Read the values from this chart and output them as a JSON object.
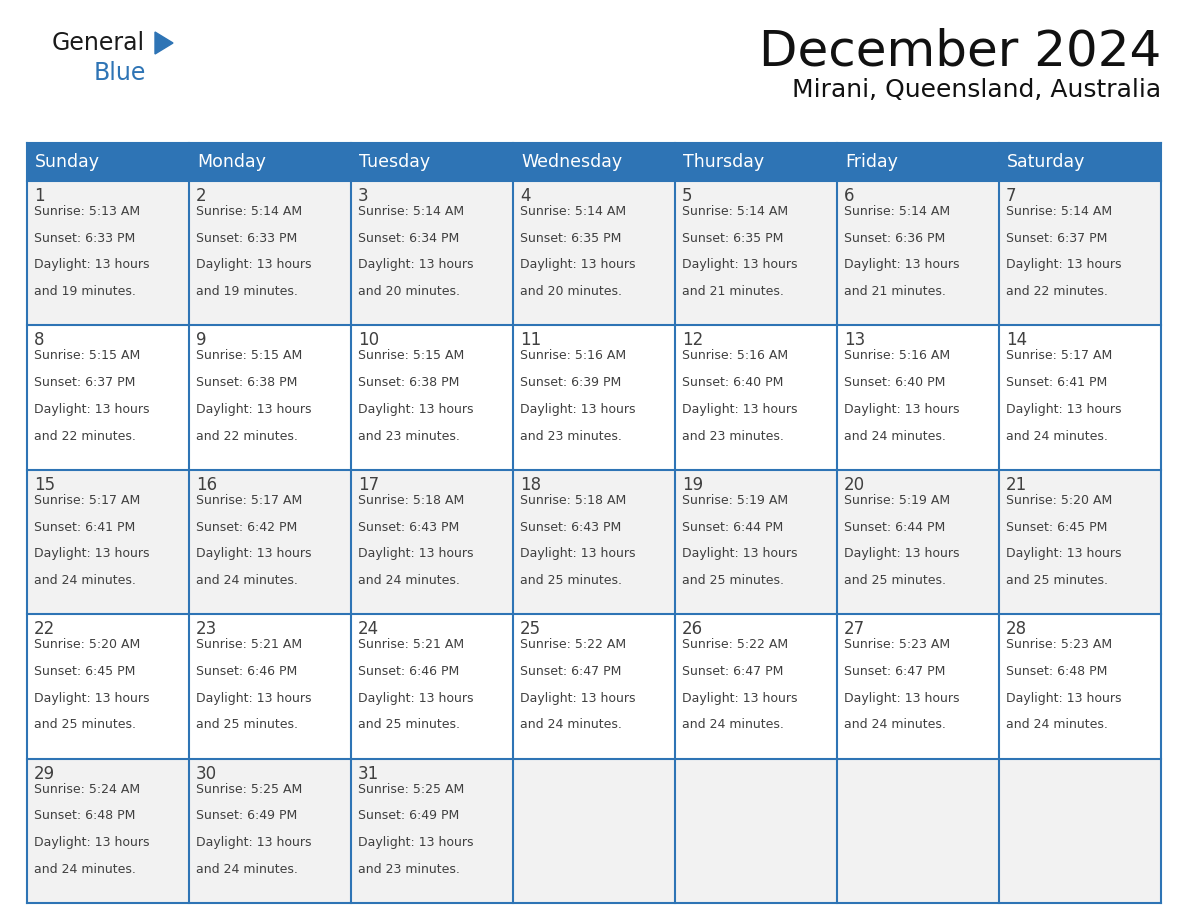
{
  "title": "December 2024",
  "subtitle": "Mirani, Queensland, Australia",
  "header_color": "#2E74B5",
  "header_text_color": "#FFFFFF",
  "cell_bg_even": "#F2F2F2",
  "cell_bg_odd": "#FFFFFF",
  "border_color": "#2E74B5",
  "text_color": "#404040",
  "days_of_week": [
    "Sunday",
    "Monday",
    "Tuesday",
    "Wednesday",
    "Thursday",
    "Friday",
    "Saturday"
  ],
  "calendar_data": [
    [
      {
        "day": 1,
        "sunrise": "5:13 AM",
        "sunset": "6:33 PM",
        "daylight_hours": 13,
        "daylight_minutes": 19
      },
      {
        "day": 2,
        "sunrise": "5:14 AM",
        "sunset": "6:33 PM",
        "daylight_hours": 13,
        "daylight_minutes": 19
      },
      {
        "day": 3,
        "sunrise": "5:14 AM",
        "sunset": "6:34 PM",
        "daylight_hours": 13,
        "daylight_minutes": 20
      },
      {
        "day": 4,
        "sunrise": "5:14 AM",
        "sunset": "6:35 PM",
        "daylight_hours": 13,
        "daylight_minutes": 20
      },
      {
        "day": 5,
        "sunrise": "5:14 AM",
        "sunset": "6:35 PM",
        "daylight_hours": 13,
        "daylight_minutes": 21
      },
      {
        "day": 6,
        "sunrise": "5:14 AM",
        "sunset": "6:36 PM",
        "daylight_hours": 13,
        "daylight_minutes": 21
      },
      {
        "day": 7,
        "sunrise": "5:14 AM",
        "sunset": "6:37 PM",
        "daylight_hours": 13,
        "daylight_minutes": 22
      }
    ],
    [
      {
        "day": 8,
        "sunrise": "5:15 AM",
        "sunset": "6:37 PM",
        "daylight_hours": 13,
        "daylight_minutes": 22
      },
      {
        "day": 9,
        "sunrise": "5:15 AM",
        "sunset": "6:38 PM",
        "daylight_hours": 13,
        "daylight_minutes": 22
      },
      {
        "day": 10,
        "sunrise": "5:15 AM",
        "sunset": "6:38 PM",
        "daylight_hours": 13,
        "daylight_minutes": 23
      },
      {
        "day": 11,
        "sunrise": "5:16 AM",
        "sunset": "6:39 PM",
        "daylight_hours": 13,
        "daylight_minutes": 23
      },
      {
        "day": 12,
        "sunrise": "5:16 AM",
        "sunset": "6:40 PM",
        "daylight_hours": 13,
        "daylight_minutes": 23
      },
      {
        "day": 13,
        "sunrise": "5:16 AM",
        "sunset": "6:40 PM",
        "daylight_hours": 13,
        "daylight_minutes": 24
      },
      {
        "day": 14,
        "sunrise": "5:17 AM",
        "sunset": "6:41 PM",
        "daylight_hours": 13,
        "daylight_minutes": 24
      }
    ],
    [
      {
        "day": 15,
        "sunrise": "5:17 AM",
        "sunset": "6:41 PM",
        "daylight_hours": 13,
        "daylight_minutes": 24
      },
      {
        "day": 16,
        "sunrise": "5:17 AM",
        "sunset": "6:42 PM",
        "daylight_hours": 13,
        "daylight_minutes": 24
      },
      {
        "day": 17,
        "sunrise": "5:18 AM",
        "sunset": "6:43 PM",
        "daylight_hours": 13,
        "daylight_minutes": 24
      },
      {
        "day": 18,
        "sunrise": "5:18 AM",
        "sunset": "6:43 PM",
        "daylight_hours": 13,
        "daylight_minutes": 25
      },
      {
        "day": 19,
        "sunrise": "5:19 AM",
        "sunset": "6:44 PM",
        "daylight_hours": 13,
        "daylight_minutes": 25
      },
      {
        "day": 20,
        "sunrise": "5:19 AM",
        "sunset": "6:44 PM",
        "daylight_hours": 13,
        "daylight_minutes": 25
      },
      {
        "day": 21,
        "sunrise": "5:20 AM",
        "sunset": "6:45 PM",
        "daylight_hours": 13,
        "daylight_minutes": 25
      }
    ],
    [
      {
        "day": 22,
        "sunrise": "5:20 AM",
        "sunset": "6:45 PM",
        "daylight_hours": 13,
        "daylight_minutes": 25
      },
      {
        "day": 23,
        "sunrise": "5:21 AM",
        "sunset": "6:46 PM",
        "daylight_hours": 13,
        "daylight_minutes": 25
      },
      {
        "day": 24,
        "sunrise": "5:21 AM",
        "sunset": "6:46 PM",
        "daylight_hours": 13,
        "daylight_minutes": 25
      },
      {
        "day": 25,
        "sunrise": "5:22 AM",
        "sunset": "6:47 PM",
        "daylight_hours": 13,
        "daylight_minutes": 24
      },
      {
        "day": 26,
        "sunrise": "5:22 AM",
        "sunset": "6:47 PM",
        "daylight_hours": 13,
        "daylight_minutes": 24
      },
      {
        "day": 27,
        "sunrise": "5:23 AM",
        "sunset": "6:47 PM",
        "daylight_hours": 13,
        "daylight_minutes": 24
      },
      {
        "day": 28,
        "sunrise": "5:23 AM",
        "sunset": "6:48 PM",
        "daylight_hours": 13,
        "daylight_minutes": 24
      }
    ],
    [
      {
        "day": 29,
        "sunrise": "5:24 AM",
        "sunset": "6:48 PM",
        "daylight_hours": 13,
        "daylight_minutes": 24
      },
      {
        "day": 30,
        "sunrise": "5:25 AM",
        "sunset": "6:49 PM",
        "daylight_hours": 13,
        "daylight_minutes": 24
      },
      {
        "day": 31,
        "sunrise": "5:25 AM",
        "sunset": "6:49 PM",
        "daylight_hours": 13,
        "daylight_minutes": 23
      },
      null,
      null,
      null,
      null
    ]
  ],
  "logo_triangle_color": "#2E74B5",
  "logo_general_color": "#1a1a1a",
  "logo_blue_color": "#2E74B5"
}
